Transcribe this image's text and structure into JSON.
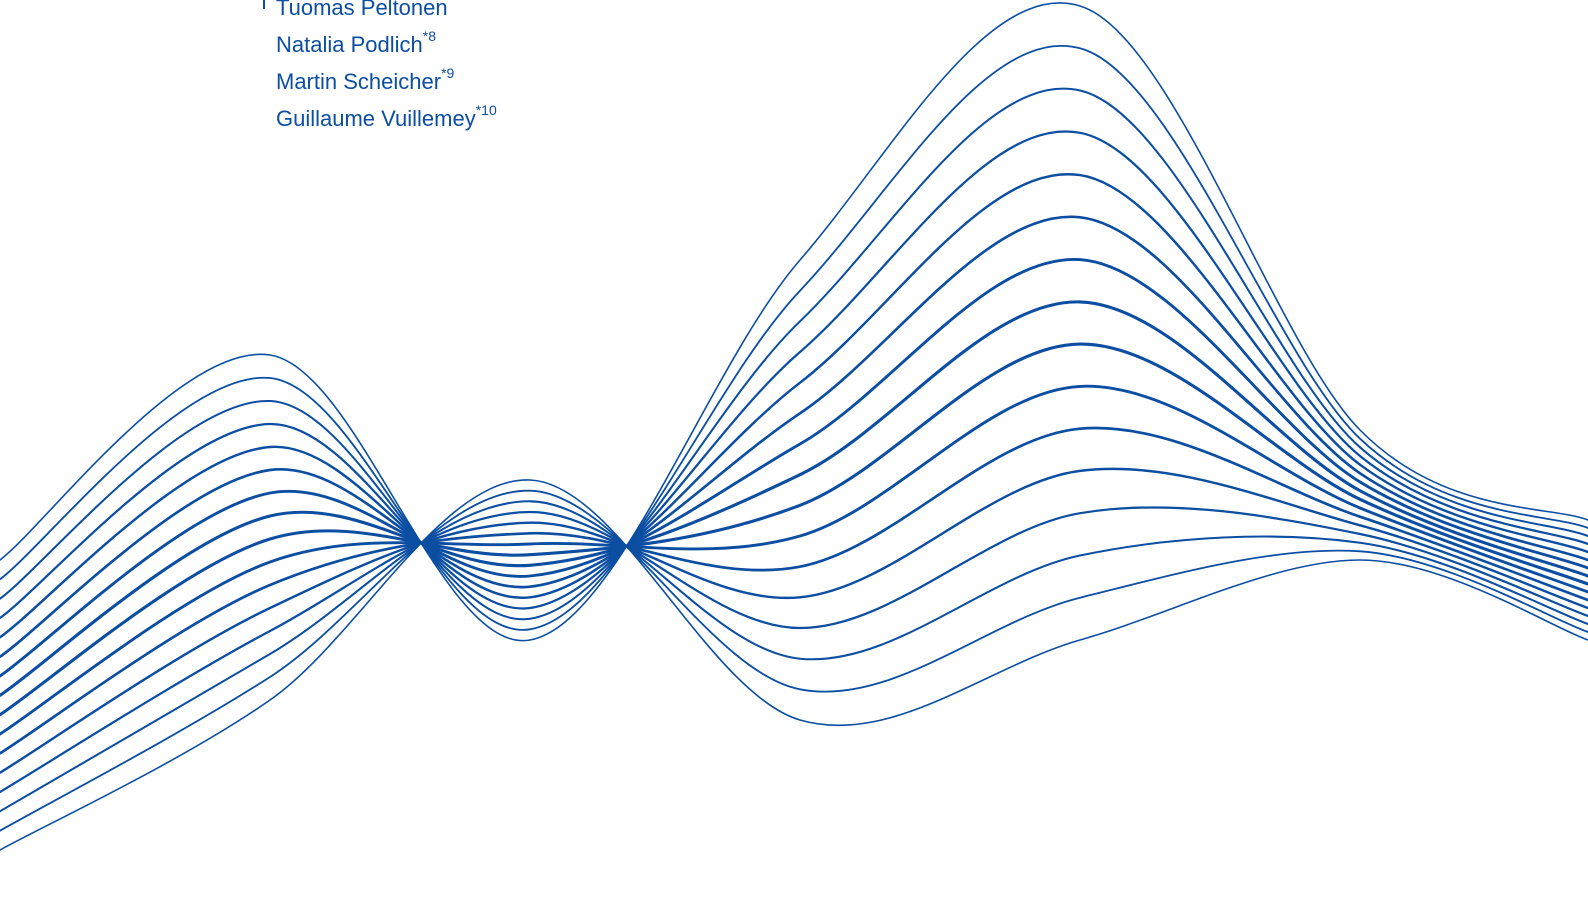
{
  "authors": [
    {
      "name": "Tuomas Peltonen",
      "mark": ""
    },
    {
      "name": "Natalia Podlich",
      "mark": "*8"
    },
    {
      "name": "Martin Scheicher",
      "mark": "*9"
    },
    {
      "name": "Guillaume Vuillemey",
      "mark": "*10"
    }
  ],
  "colors": {
    "text": "#0b4ea2",
    "line": "#0b4ea2",
    "background": "#ffffff"
  }
}
